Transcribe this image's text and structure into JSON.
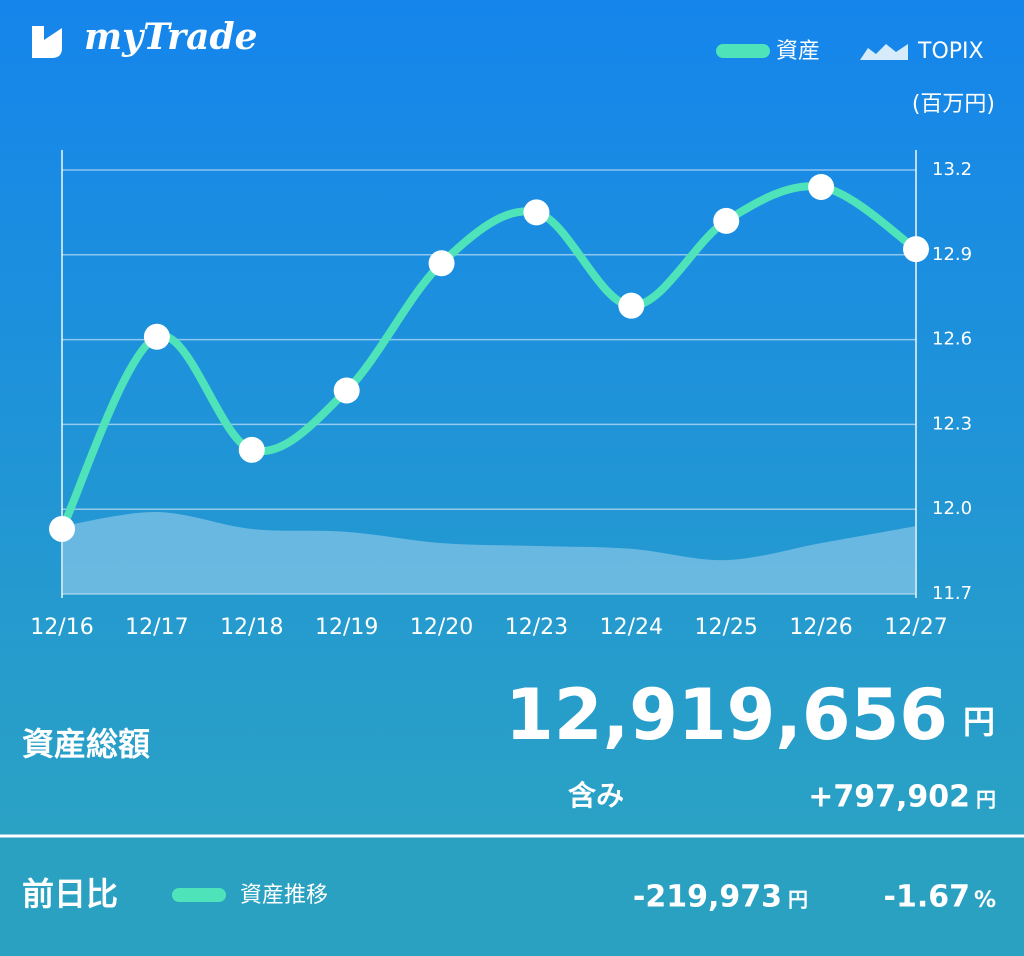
{
  "app": {
    "name": "myTrade",
    "unit": "(百万円)"
  },
  "chart_data": {
    "type": "line",
    "categories": [
      "12/16",
      "12/17",
      "12/18",
      "12/19",
      "12/20",
      "12/23",
      "12/24",
      "12/25",
      "12/26",
      "12/27"
    ],
    "series": [
      {
        "name": "資産",
        "color": "#4fe3b9",
        "kind": "line",
        "values": [
          11.93,
          12.61,
          12.21,
          12.42,
          12.87,
          13.05,
          12.72,
          13.02,
          13.14,
          12.92
        ]
      },
      {
        "name": "TOPIX",
        "color": "#bfe0f5",
        "kind": "area",
        "values": [
          11.94,
          11.99,
          11.93,
          11.92,
          11.88,
          11.87,
          11.86,
          11.82,
          11.88,
          11.94
        ]
      }
    ],
    "ylim": [
      11.7,
      13.2
    ],
    "yticks": [
      11.7,
      {
        "value": 12,
        "label": "12.0"
      },
      12.3,
      12.6,
      12.9,
      13.2
    ],
    "grid": true
  },
  "summary": {
    "total_label": "資産総額",
    "total": "12,919,656",
    "total_unit": "円",
    "unrealized_label": "含み",
    "unrealized": "+797,902",
    "unrealized_unit": "円"
  },
  "daily": {
    "label": "前日比",
    "legend": "資産推移",
    "change": "-219,973",
    "change_unit": "円",
    "percent": "-1.67",
    "percent_unit": "%"
  }
}
